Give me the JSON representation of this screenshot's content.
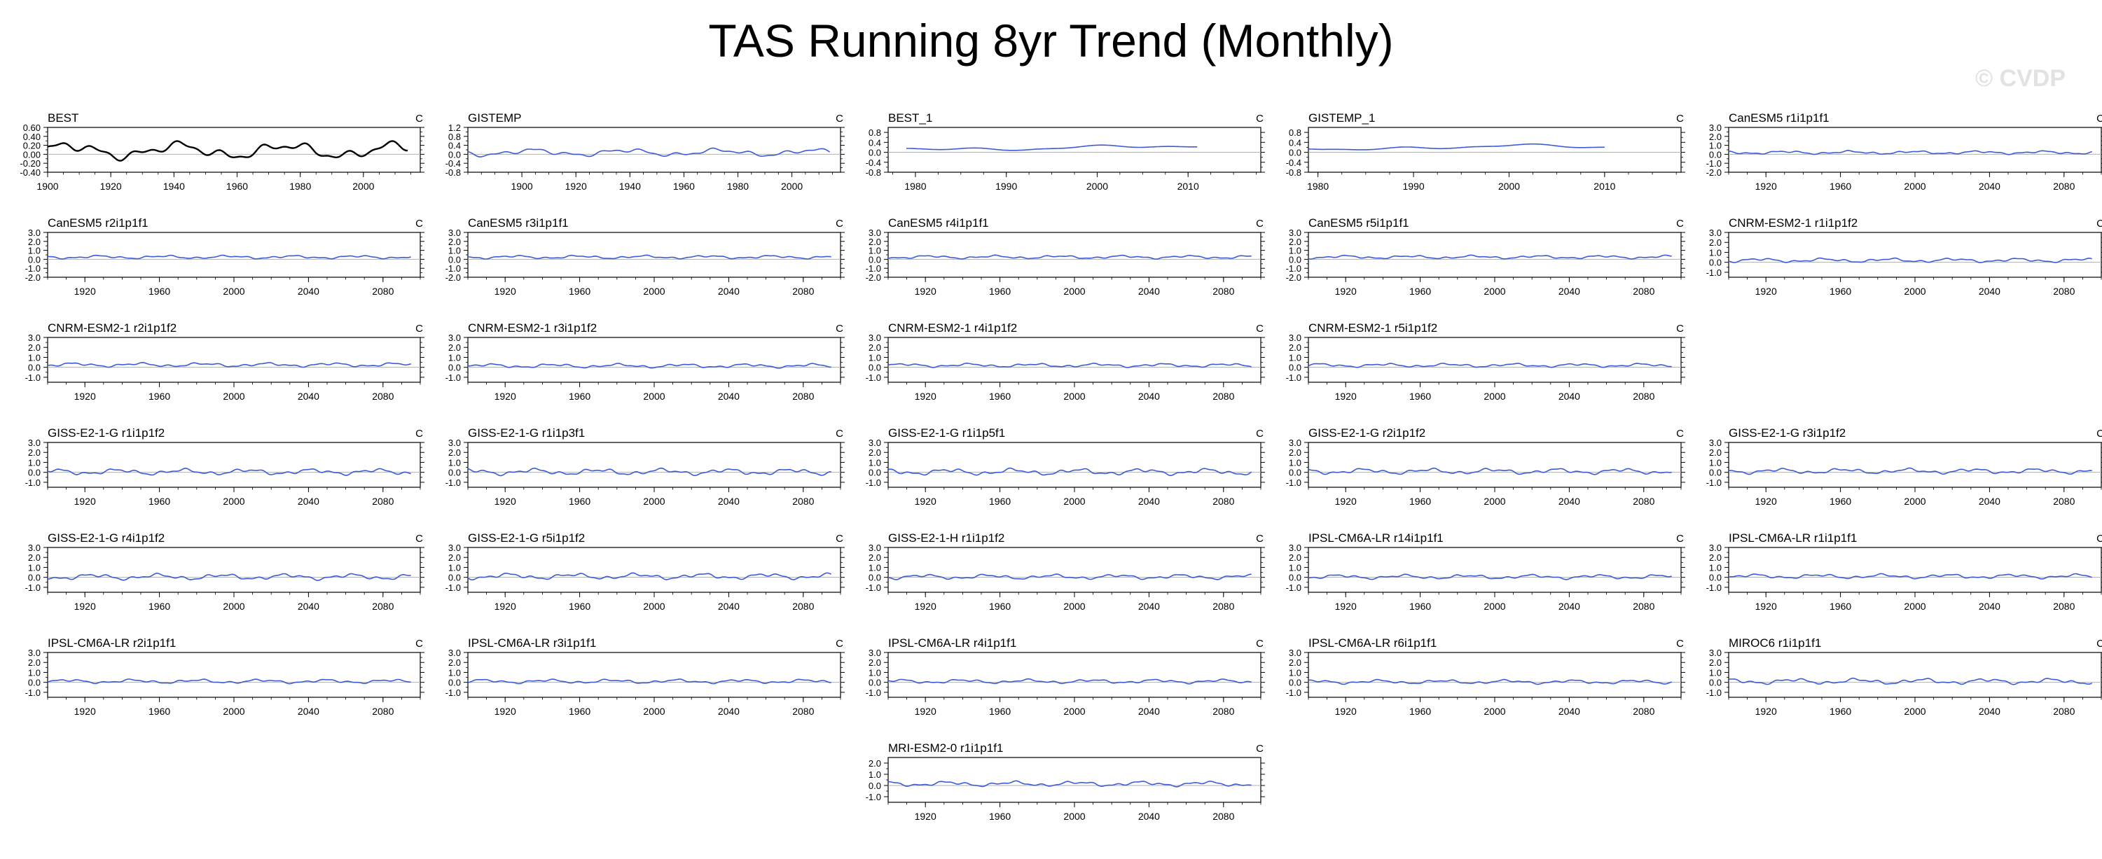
{
  "title": "TAS Running 8yr Trend (Monthly)",
  "watermark": "© CVDP",
  "colors": {
    "obs_line": "#000000",
    "model_line": "#3d5bd6",
    "zero_line": "#b0b0b0",
    "axis": "#000000"
  },
  "chart_data": [
    {
      "type": "line",
      "title": "BEST",
      "units": "C",
      "series_kind": "obs",
      "xlim": [
        1900,
        2018
      ],
      "x_range": [
        1900,
        2014
      ],
      "ylim": [
        -0.4,
        0.6
      ],
      "yticks": [
        "-0.40",
        "-0.20",
        "0.00",
        "0.20",
        "0.40",
        "0.60"
      ],
      "xticks": [
        "1900",
        "1920",
        "1940",
        "1960",
        "1980",
        "2000"
      ],
      "amp": 0.2,
      "offset": 0.08,
      "seed": 1
    },
    {
      "type": "line",
      "title": "GISTEMP",
      "units": "C",
      "series_kind": "model",
      "xlim": [
        1880,
        2018
      ],
      "x_range": [
        1880,
        2014
      ],
      "ylim": [
        -0.8,
        1.2
      ],
      "yticks": [
        "-0.8",
        "-0.4",
        "0.0",
        "0.4",
        "0.8",
        "1.2"
      ],
      "xticks": [
        "1900",
        "1920",
        "1940",
        "1960",
        "1980",
        "2000"
      ],
      "amp": 0.18,
      "offset": 0.08,
      "seed": 2
    },
    {
      "type": "line",
      "title": "BEST_1",
      "units": "C",
      "series_kind": "model",
      "xlim": [
        1977,
        2018
      ],
      "x_range": [
        1979,
        2011
      ],
      "ylim": [
        -0.8,
        1.0
      ],
      "yticks": [
        "-0.8",
        "-0.4",
        "0.0",
        "0.4",
        "0.8"
      ],
      "xticks": [
        "1980",
        "1990",
        "2000",
        "2010"
      ],
      "amp": 0.12,
      "offset": 0.18,
      "seed": 3
    },
    {
      "type": "line",
      "title": "GISTEMP_1",
      "units": "C",
      "series_kind": "model",
      "xlim": [
        1979,
        2018
      ],
      "x_range": [
        1979,
        2010
      ],
      "ylim": [
        -0.8,
        1.0
      ],
      "yticks": [
        "-0.8",
        "-0.4",
        "0.0",
        "0.4",
        "0.8"
      ],
      "xticks": [
        "1980",
        "1990",
        "2000",
        "2010"
      ],
      "amp": 0.12,
      "offset": 0.2,
      "seed": 4
    },
    {
      "type": "line",
      "title": "CanESM5 r1i1p1f1",
      "units": "C",
      "series_kind": "model",
      "xlim": [
        1900,
        2100
      ],
      "x_range": [
        1900,
        2095
      ],
      "ylim": [
        -2.0,
        3.0
      ],
      "yticks": [
        "-2.0",
        "-1.0",
        "0.0",
        "1.0",
        "2.0",
        "3.0"
      ],
      "xticks": [
        "1920",
        "1960",
        "2000",
        "2040",
        "2080"
      ],
      "amp": 0.2,
      "offset": 0.2,
      "seed": 5
    },
    {
      "type": "line",
      "title": "CanESM5 r2i1p1f1",
      "units": "C",
      "series_kind": "model",
      "xlim": [
        1900,
        2100
      ],
      "x_range": [
        1900,
        2095
      ],
      "ylim": [
        -2.0,
        3.0
      ],
      "yticks": [
        "-2.0",
        "-1.0",
        "0.0",
        "1.0",
        "2.0",
        "3.0"
      ],
      "xticks": [
        "1920",
        "1960",
        "2000",
        "2040",
        "2080"
      ],
      "amp": 0.2,
      "offset": 0.25,
      "seed": 6
    },
    {
      "type": "line",
      "title": "CanESM5 r3i1p1f1",
      "units": "C",
      "series_kind": "model",
      "xlim": [
        1900,
        2100
      ],
      "x_range": [
        1900,
        2095
      ],
      "ylim": [
        -2.0,
        3.0
      ],
      "yticks": [
        "-2.0",
        "-1.0",
        "0.0",
        "1.0",
        "2.0",
        "3.0"
      ],
      "xticks": [
        "1920",
        "1960",
        "2000",
        "2040",
        "2080"
      ],
      "amp": 0.2,
      "offset": 0.25,
      "seed": 7
    },
    {
      "type": "line",
      "title": "CanESM5 r4i1p1f1",
      "units": "C",
      "series_kind": "model",
      "xlim": [
        1900,
        2100
      ],
      "x_range": [
        1900,
        2095
      ],
      "ylim": [
        -2.0,
        3.0
      ],
      "yticks": [
        "-2.0",
        "-1.0",
        "0.0",
        "1.0",
        "2.0",
        "3.0"
      ],
      "xticks": [
        "1920",
        "1960",
        "2000",
        "2040",
        "2080"
      ],
      "amp": 0.2,
      "offset": 0.25,
      "seed": 8
    },
    {
      "type": "line",
      "title": "CanESM5 r5i1p1f1",
      "units": "C",
      "series_kind": "model",
      "xlim": [
        1900,
        2100
      ],
      "x_range": [
        1900,
        2095
      ],
      "ylim": [
        -2.0,
        3.0
      ],
      "yticks": [
        "-2.0",
        "-1.0",
        "0.0",
        "1.0",
        "2.0",
        "3.0"
      ],
      "xticks": [
        "1920",
        "1960",
        "2000",
        "2040",
        "2080"
      ],
      "amp": 0.2,
      "offset": 0.25,
      "seed": 9
    },
    {
      "type": "line",
      "title": "CNRM-ESM2-1 r1i1p1f2",
      "units": "C",
      "series_kind": "model",
      "xlim": [
        1900,
        2100
      ],
      "x_range": [
        1900,
        2095
      ],
      "ylim": [
        -1.5,
        3.0
      ],
      "yticks": [
        "-1.0",
        "0.0",
        "1.0",
        "2.0",
        "3.0"
      ],
      "xticks": [
        "1920",
        "1960",
        "2000",
        "2040",
        "2080"
      ],
      "amp": 0.22,
      "offset": 0.2,
      "seed": 10
    },
    {
      "type": "line",
      "title": "CNRM-ESM2-1 r2i1p1f2",
      "units": "C",
      "series_kind": "model",
      "xlim": [
        1900,
        2100
      ],
      "x_range": [
        1900,
        2095
      ],
      "ylim": [
        -1.5,
        3.0
      ],
      "yticks": [
        "-1.0",
        "0.0",
        "1.0",
        "2.0",
        "3.0"
      ],
      "xticks": [
        "1920",
        "1960",
        "2000",
        "2040",
        "2080"
      ],
      "amp": 0.22,
      "offset": 0.25,
      "seed": 11
    },
    {
      "type": "line",
      "title": "CNRM-ESM2-1 r3i1p1f2",
      "units": "C",
      "series_kind": "model",
      "xlim": [
        1900,
        2100
      ],
      "x_range": [
        1900,
        2095
      ],
      "ylim": [
        -1.5,
        3.0
      ],
      "yticks": [
        "-1.0",
        "0.0",
        "1.0",
        "2.0",
        "3.0"
      ],
      "xticks": [
        "1920",
        "1960",
        "2000",
        "2040",
        "2080"
      ],
      "amp": 0.22,
      "offset": 0.15,
      "seed": 12
    },
    {
      "type": "line",
      "title": "CNRM-ESM2-1 r4i1p1f2",
      "units": "C",
      "series_kind": "model",
      "xlim": [
        1900,
        2100
      ],
      "x_range": [
        1900,
        2095
      ],
      "ylim": [
        -1.5,
        3.0
      ],
      "yticks": [
        "-1.0",
        "0.0",
        "1.0",
        "2.0",
        "3.0"
      ],
      "xticks": [
        "1920",
        "1960",
        "2000",
        "2040",
        "2080"
      ],
      "amp": 0.2,
      "offset": 0.2,
      "seed": 13
    },
    {
      "type": "line",
      "title": "CNRM-ESM2-1 r5i1p1f2",
      "units": "C",
      "series_kind": "model",
      "xlim": [
        1900,
        2100
      ],
      "x_range": [
        1900,
        2095
      ],
      "ylim": [
        -1.5,
        3.0
      ],
      "yticks": [
        "-1.0",
        "0.0",
        "1.0",
        "2.0",
        "3.0"
      ],
      "xticks": [
        "1920",
        "1960",
        "2000",
        "2040",
        "2080"
      ],
      "amp": 0.2,
      "offset": 0.2,
      "seed": 14
    },
    null,
    {
      "type": "line",
      "title": "GISS-E2-1-G r1i1p1f2",
      "units": "C",
      "series_kind": "model",
      "xlim": [
        1900,
        2100
      ],
      "x_range": [
        1900,
        2095
      ],
      "ylim": [
        -1.5,
        3.0
      ],
      "yticks": [
        "-1.0",
        "0.0",
        "1.0",
        "2.0",
        "3.0"
      ],
      "xticks": [
        "1920",
        "1960",
        "2000",
        "2040",
        "2080"
      ],
      "amp": 0.32,
      "offset": 0.05,
      "seed": 15
    },
    {
      "type": "line",
      "title": "GISS-E2-1-G r1i1p3f1",
      "units": "C",
      "series_kind": "model",
      "xlim": [
        1900,
        2100
      ],
      "x_range": [
        1900,
        2095
      ],
      "ylim": [
        -1.5,
        3.0
      ],
      "yticks": [
        "-1.0",
        "0.0",
        "1.0",
        "2.0",
        "3.0"
      ],
      "xticks": [
        "1920",
        "1960",
        "2000",
        "2040",
        "2080"
      ],
      "amp": 0.34,
      "offset": 0.05,
      "seed": 16
    },
    {
      "type": "line",
      "title": "GISS-E2-1-G r1i1p5f1",
      "units": "C",
      "series_kind": "model",
      "xlim": [
        1900,
        2100
      ],
      "x_range": [
        1900,
        2095
      ],
      "ylim": [
        -1.5,
        3.0
      ],
      "yticks": [
        "-1.0",
        "0.0",
        "1.0",
        "2.0",
        "3.0"
      ],
      "xticks": [
        "1920",
        "1960",
        "2000",
        "2040",
        "2080"
      ],
      "amp": 0.34,
      "offset": 0.05,
      "seed": 17
    },
    {
      "type": "line",
      "title": "GISS-E2-1-G r2i1p1f2",
      "units": "C",
      "series_kind": "model",
      "xlim": [
        1900,
        2100
      ],
      "x_range": [
        1900,
        2095
      ],
      "ylim": [
        -1.5,
        3.0
      ],
      "yticks": [
        "-1.0",
        "0.0",
        "1.0",
        "2.0",
        "3.0"
      ],
      "xticks": [
        "1920",
        "1960",
        "2000",
        "2040",
        "2080"
      ],
      "amp": 0.3,
      "offset": 0.1,
      "seed": 18
    },
    {
      "type": "line",
      "title": "GISS-E2-1-G r3i1p1f2",
      "units": "C",
      "series_kind": "model",
      "xlim": [
        1900,
        2100
      ],
      "x_range": [
        1900,
        2095
      ],
      "ylim": [
        -1.5,
        3.0
      ],
      "yticks": [
        "-1.0",
        "0.0",
        "1.0",
        "2.0",
        "3.0"
      ],
      "xticks": [
        "1920",
        "1960",
        "2000",
        "2040",
        "2080"
      ],
      "amp": 0.28,
      "offset": 0.12,
      "seed": 19
    },
    {
      "type": "line",
      "title": "GISS-E2-1-G r4i1p1f2",
      "units": "C",
      "series_kind": "model",
      "xlim": [
        1900,
        2100
      ],
      "x_range": [
        1900,
        2095
      ],
      "ylim": [
        -1.5,
        3.0
      ],
      "yticks": [
        "-1.0",
        "0.0",
        "1.0",
        "2.0",
        "3.0"
      ],
      "xticks": [
        "1920",
        "1960",
        "2000",
        "2040",
        "2080"
      ],
      "amp": 0.32,
      "offset": 0.05,
      "seed": 20
    },
    {
      "type": "line",
      "title": "GISS-E2-1-G r5i1p1f2",
      "units": "C",
      "series_kind": "model",
      "xlim": [
        1900,
        2100
      ],
      "x_range": [
        1900,
        2095
      ],
      "ylim": [
        -1.5,
        3.0
      ],
      "yticks": [
        "-1.0",
        "0.0",
        "1.0",
        "2.0",
        "3.0"
      ],
      "xticks": [
        "1920",
        "1960",
        "2000",
        "2040",
        "2080"
      ],
      "amp": 0.32,
      "offset": 0.1,
      "seed": 21
    },
    {
      "type": "line",
      "title": "GISS-E2-1-H r1i1p1f2",
      "units": "C",
      "series_kind": "model",
      "xlim": [
        1900,
        2100
      ],
      "x_range": [
        1900,
        2095
      ],
      "ylim": [
        -1.5,
        3.0
      ],
      "yticks": [
        "-1.0",
        "0.0",
        "1.0",
        "2.0",
        "3.0"
      ],
      "xticks": [
        "1920",
        "1960",
        "2000",
        "2040",
        "2080"
      ],
      "amp": 0.26,
      "offset": 0.05,
      "seed": 22
    },
    {
      "type": "line",
      "title": "IPSL-CM6A-LR r14i1p1f1",
      "units": "C",
      "series_kind": "model",
      "xlim": [
        1900,
        2100
      ],
      "x_range": [
        1900,
        2095
      ],
      "ylim": [
        -1.5,
        3.0
      ],
      "yticks": [
        "-1.0",
        "0.0",
        "1.0",
        "2.0",
        "3.0"
      ],
      "xticks": [
        "1920",
        "1960",
        "2000",
        "2040",
        "2080"
      ],
      "amp": 0.24,
      "offset": 0.05,
      "seed": 23
    },
    {
      "type": "line",
      "title": "IPSL-CM6A-LR r1i1p1f1",
      "units": "C",
      "series_kind": "model",
      "xlim": [
        1900,
        2100
      ],
      "x_range": [
        1900,
        2095
      ],
      "ylim": [
        -1.5,
        3.0
      ],
      "yticks": [
        "-1.0",
        "0.0",
        "1.0",
        "2.0",
        "3.0"
      ],
      "xticks": [
        "1920",
        "1960",
        "2000",
        "2040",
        "2080"
      ],
      "amp": 0.24,
      "offset": 0.1,
      "seed": 24
    },
    {
      "type": "line",
      "title": "IPSL-CM6A-LR r2i1p1f1",
      "units": "C",
      "series_kind": "model",
      "xlim": [
        1900,
        2100
      ],
      "x_range": [
        1900,
        2095
      ],
      "ylim": [
        -1.5,
        3.0
      ],
      "yticks": [
        "-1.0",
        "0.0",
        "1.0",
        "2.0",
        "3.0"
      ],
      "xticks": [
        "1920",
        "1960",
        "2000",
        "2040",
        "2080"
      ],
      "amp": 0.22,
      "offset": 0.1,
      "seed": 25
    },
    {
      "type": "line",
      "title": "IPSL-CM6A-LR r3i1p1f1",
      "units": "C",
      "series_kind": "model",
      "xlim": [
        1900,
        2100
      ],
      "x_range": [
        1900,
        2095
      ],
      "ylim": [
        -1.5,
        3.0
      ],
      "yticks": [
        "-1.0",
        "0.0",
        "1.0",
        "2.0",
        "3.0"
      ],
      "xticks": [
        "1920",
        "1960",
        "2000",
        "2040",
        "2080"
      ],
      "amp": 0.22,
      "offset": 0.1,
      "seed": 26
    },
    {
      "type": "line",
      "title": "IPSL-CM6A-LR r4i1p1f1",
      "units": "C",
      "series_kind": "model",
      "xlim": [
        1900,
        2100
      ],
      "x_range": [
        1900,
        2095
      ],
      "ylim": [
        -1.5,
        3.0
      ],
      "yticks": [
        "-1.0",
        "0.0",
        "1.0",
        "2.0",
        "3.0"
      ],
      "xticks": [
        "1920",
        "1960",
        "2000",
        "2040",
        "2080"
      ],
      "amp": 0.22,
      "offset": 0.1,
      "seed": 27
    },
    {
      "type": "line",
      "title": "IPSL-CM6A-LR r6i1p1f1",
      "units": "C",
      "series_kind": "model",
      "xlim": [
        1900,
        2100
      ],
      "x_range": [
        1900,
        2095
      ],
      "ylim": [
        -1.5,
        3.0
      ],
      "yticks": [
        "-1.0",
        "0.0",
        "1.0",
        "2.0",
        "3.0"
      ],
      "xticks": [
        "1920",
        "1960",
        "2000",
        "2040",
        "2080"
      ],
      "amp": 0.22,
      "offset": 0.05,
      "seed": 28
    },
    {
      "type": "line",
      "title": "MIROC6 r1i1p1f1",
      "units": "C",
      "series_kind": "model",
      "xlim": [
        1900,
        2100
      ],
      "x_range": [
        1900,
        2095
      ],
      "ylim": [
        -1.5,
        3.0
      ],
      "yticks": [
        "-1.0",
        "0.0",
        "1.0",
        "2.0",
        "3.0"
      ],
      "xticks": [
        "1920",
        "1960",
        "2000",
        "2040",
        "2080"
      ],
      "amp": 0.3,
      "offset": 0.1,
      "seed": 29
    },
    null,
    null,
    {
      "type": "line",
      "title": "MRI-ESM2-0 r1i1p1f1",
      "units": "C",
      "series_kind": "model",
      "xlim": [
        1900,
        2100
      ],
      "x_range": [
        1900,
        2095
      ],
      "ylim": [
        -1.5,
        2.5
      ],
      "yticks": [
        "-1.0",
        "0.0",
        "1.0",
        "2.0"
      ],
      "xticks": [
        "1920",
        "1960",
        "2000",
        "2040",
        "2080"
      ],
      "amp": 0.24,
      "offset": 0.15,
      "seed": 30
    },
    null,
    null
  ]
}
